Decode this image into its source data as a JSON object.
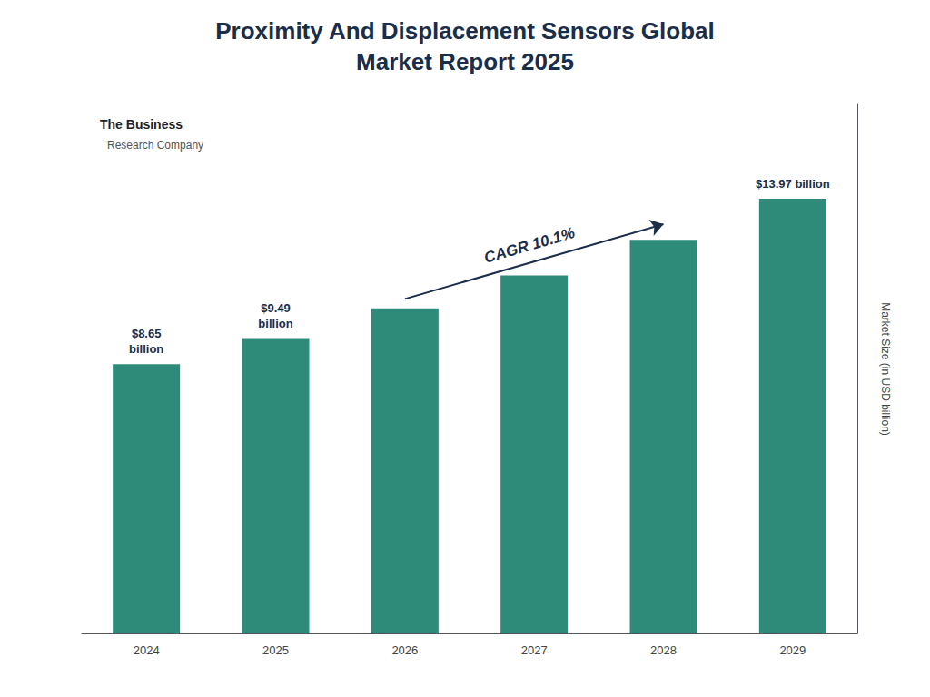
{
  "chart_data": {
    "type": "bar",
    "title": "Proximity And Displacement Sensors Global\nMarket Report 2025",
    "categories": [
      "2024",
      "2025",
      "2026",
      "2027",
      "2028",
      "2029"
    ],
    "values": [
      8.65,
      9.49,
      10.45,
      11.5,
      12.65,
      13.97
    ],
    "color": "#2e8b7a",
    "ylabel": "Market Size (in USD billion)",
    "ylim": [
      0,
      17
    ],
    "grid": false,
    "tick_labels": "x",
    "annotations": [
      {
        "text": "$8.65\nbillion",
        "category": "2024"
      },
      {
        "text": "$9.49\nbillion",
        "category": "2025"
      },
      {
        "text": "$13.97 billion",
        "category": "2029"
      },
      {
        "text": "CAGR 10.1%",
        "from": "2026",
        "to": "2028"
      },
      {
        "text": "The Business"
      },
      {
        "text": "Research Company"
      }
    ]
  }
}
